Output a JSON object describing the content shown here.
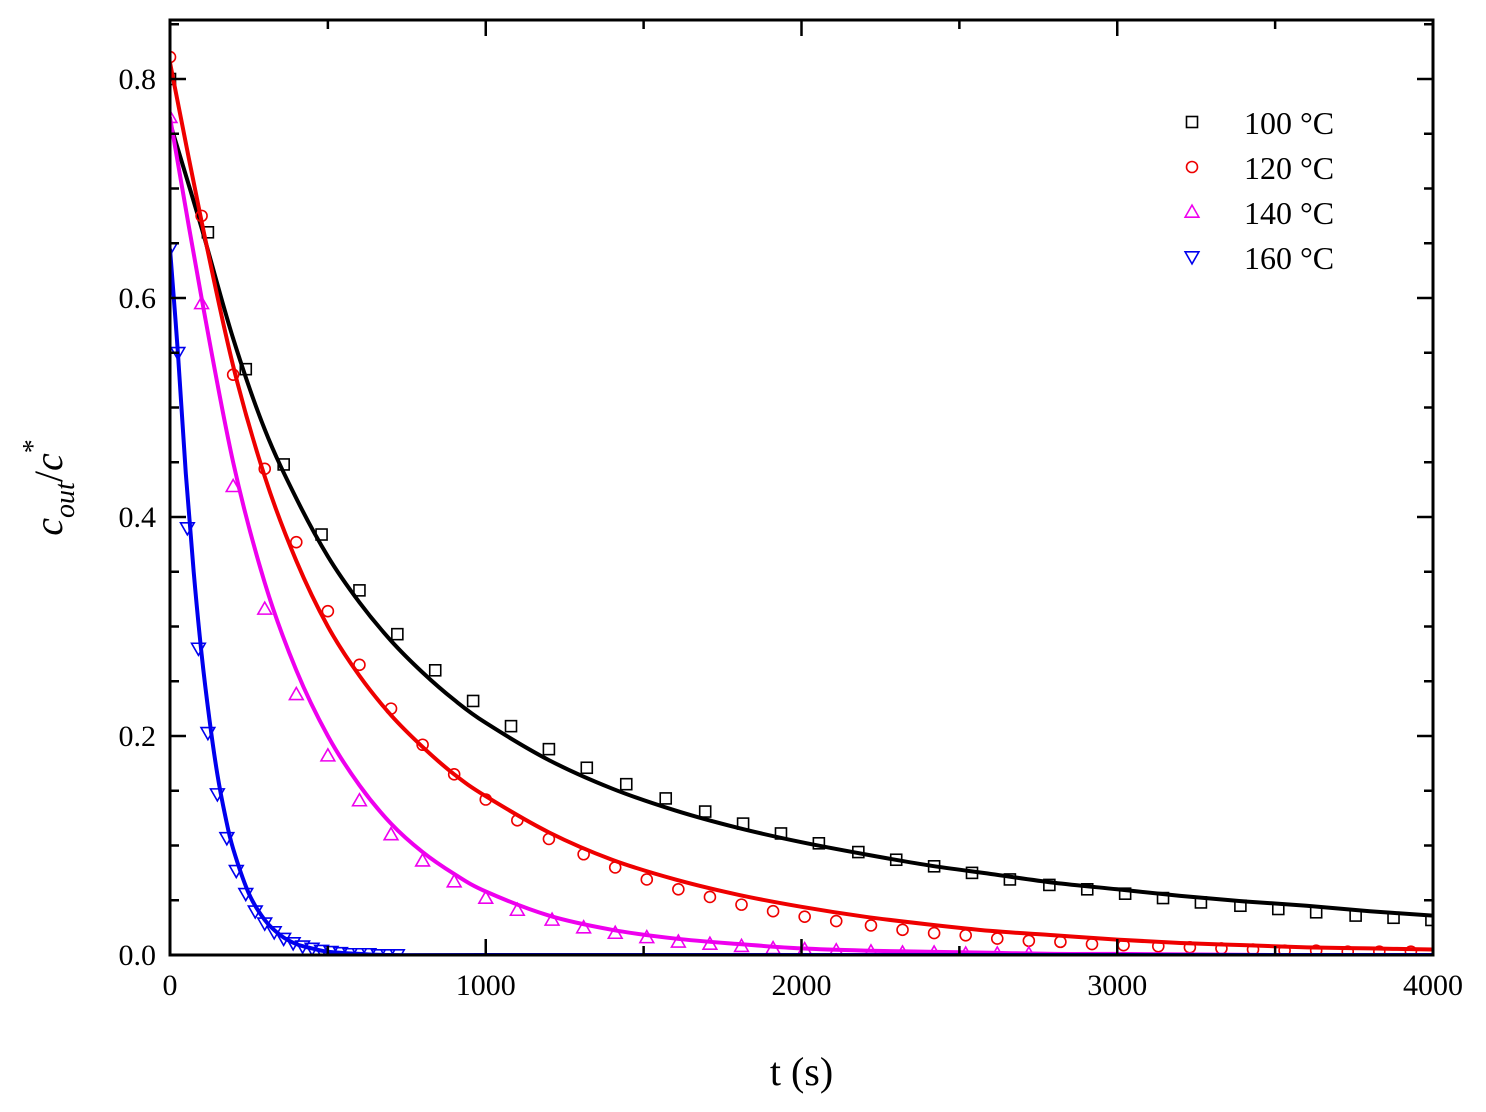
{
  "chart_data": {
    "type": "scatter",
    "title": "",
    "xlabel": "t (s)",
    "ylabel": {
      "base1": "c",
      "sub": "out",
      "slash": "/",
      "base2": "c",
      "sup": "*"
    },
    "xlim": [
      0,
      4000
    ],
    "ylim": [
      0,
      0.85
    ],
    "x_ticks": [
      0,
      1000,
      2000,
      3000,
      4000
    ],
    "x_tick_labels": [
      "0",
      "1000",
      "2000",
      "3000",
      "4000"
    ],
    "y_ticks": [
      0.0,
      0.2,
      0.4,
      0.6,
      0.8
    ],
    "y_tick_labels": [
      "0.0",
      "0.2",
      "0.4",
      "0.6",
      "0.8"
    ],
    "grid": false,
    "legend_position": "top-right",
    "series": [
      {
        "name": "100 °C",
        "color": "#000000",
        "marker": "square",
        "points": [
          [
            0,
            0.8
          ],
          [
            120,
            0.66
          ],
          [
            240,
            0.535
          ],
          [
            360,
            0.448
          ],
          [
            480,
            0.384
          ],
          [
            600,
            0.333
          ],
          [
            720,
            0.293
          ],
          [
            840,
            0.26
          ],
          [
            960,
            0.232
          ],
          [
            1080,
            0.209
          ],
          [
            1200,
            0.188
          ],
          [
            1320,
            0.171
          ],
          [
            1445,
            0.156
          ],
          [
            1570,
            0.143
          ],
          [
            1695,
            0.131
          ],
          [
            1815,
            0.12
          ],
          [
            1935,
            0.111
          ],
          [
            2055,
            0.102
          ],
          [
            2180,
            0.094
          ],
          [
            2300,
            0.087
          ],
          [
            2420,
            0.081
          ],
          [
            2540,
            0.075
          ],
          [
            2660,
            0.069
          ],
          [
            2785,
            0.064
          ],
          [
            2905,
            0.06
          ],
          [
            3025,
            0.056
          ],
          [
            3145,
            0.052
          ],
          [
            3265,
            0.048
          ],
          [
            3390,
            0.045
          ],
          [
            3510,
            0.042
          ],
          [
            3630,
            0.039
          ],
          [
            3755,
            0.036
          ],
          [
            3875,
            0.034
          ],
          [
            3995,
            0.032
          ]
        ],
        "fit": [
          [
            0,
            0.76
          ],
          [
            100,
            0.664
          ],
          [
            200,
            0.563
          ],
          [
            300,
            0.48
          ],
          [
            400,
            0.417
          ],
          [
            500,
            0.364
          ],
          [
            600,
            0.322
          ],
          [
            700,
            0.287
          ],
          [
            800,
            0.258
          ],
          [
            900,
            0.233
          ],
          [
            1000,
            0.212
          ],
          [
            1200,
            0.178
          ],
          [
            1400,
            0.152
          ],
          [
            1600,
            0.132
          ],
          [
            1800,
            0.116
          ],
          [
            2000,
            0.103
          ],
          [
            2200,
            0.092
          ],
          [
            2400,
            0.082
          ],
          [
            2600,
            0.074
          ],
          [
            2800,
            0.066
          ],
          [
            3000,
            0.06
          ],
          [
            3200,
            0.054
          ],
          [
            3400,
            0.049
          ],
          [
            3600,
            0.045
          ],
          [
            3800,
            0.04
          ],
          [
            4000,
            0.036
          ]
        ]
      },
      {
        "name": "120 °C",
        "color": "#ee0000",
        "marker": "circle",
        "points": [
          [
            0,
            0.82
          ],
          [
            100,
            0.675
          ],
          [
            200,
            0.53
          ],
          [
            300,
            0.444
          ],
          [
            400,
            0.377
          ],
          [
            500,
            0.314
          ],
          [
            600,
            0.265
          ],
          [
            700,
            0.225
          ],
          [
            800,
            0.192
          ],
          [
            900,
            0.165
          ],
          [
            1000,
            0.142
          ],
          [
            1100,
            0.123
          ],
          [
            1200,
            0.106
          ],
          [
            1310,
            0.092
          ],
          [
            1410,
            0.08
          ],
          [
            1510,
            0.069
          ],
          [
            1610,
            0.06
          ],
          [
            1710,
            0.053
          ],
          [
            1810,
            0.046
          ],
          [
            1910,
            0.04
          ],
          [
            2010,
            0.035
          ],
          [
            2110,
            0.031
          ],
          [
            2220,
            0.027
          ],
          [
            2320,
            0.023
          ],
          [
            2420,
            0.02
          ],
          [
            2520,
            0.018
          ],
          [
            2620,
            0.015
          ],
          [
            2720,
            0.013
          ],
          [
            2820,
            0.012
          ],
          [
            2920,
            0.01
          ],
          [
            3020,
            0.009
          ],
          [
            3130,
            0.008
          ],
          [
            3230,
            0.007
          ],
          [
            3330,
            0.006
          ],
          [
            3430,
            0.005
          ],
          [
            3530,
            0.004
          ],
          [
            3630,
            0.004
          ],
          [
            3730,
            0.003
          ],
          [
            3830,
            0.003
          ],
          [
            3930,
            0.003
          ]
        ],
        "fit": [
          [
            0,
            0.815
          ],
          [
            100,
            0.67
          ],
          [
            200,
            0.538
          ],
          [
            300,
            0.437
          ],
          [
            400,
            0.36
          ],
          [
            500,
            0.3
          ],
          [
            600,
            0.255
          ],
          [
            700,
            0.219
          ],
          [
            800,
            0.19
          ],
          [
            900,
            0.165
          ],
          [
            1000,
            0.145
          ],
          [
            1200,
            0.112
          ],
          [
            1400,
            0.087
          ],
          [
            1600,
            0.069
          ],
          [
            1800,
            0.055
          ],
          [
            2000,
            0.044
          ],
          [
            2200,
            0.035
          ],
          [
            2400,
            0.028
          ],
          [
            2600,
            0.022
          ],
          [
            2800,
            0.018
          ],
          [
            3000,
            0.014
          ],
          [
            3200,
            0.011
          ],
          [
            3400,
            0.009
          ],
          [
            3600,
            0.007
          ],
          [
            3800,
            0.006
          ],
          [
            4000,
            0.005
          ]
        ]
      },
      {
        "name": "140 °C",
        "color": "#ee00ee",
        "marker": "triangle-up",
        "points": [
          [
            0,
            0.765
          ],
          [
            100,
            0.595
          ],
          [
            200,
            0.428
          ],
          [
            300,
            0.316
          ],
          [
            400,
            0.238
          ],
          [
            500,
            0.182
          ],
          [
            600,
            0.141
          ],
          [
            700,
            0.11
          ],
          [
            800,
            0.086
          ],
          [
            900,
            0.067
          ],
          [
            1000,
            0.052
          ],
          [
            1100,
            0.041
          ],
          [
            1210,
            0.032
          ],
          [
            1310,
            0.025
          ],
          [
            1410,
            0.02
          ],
          [
            1510,
            0.016
          ],
          [
            1610,
            0.012
          ],
          [
            1710,
            0.01
          ],
          [
            1810,
            0.008
          ],
          [
            1910,
            0.006
          ],
          [
            2010,
            0.005
          ],
          [
            2110,
            0.004
          ],
          [
            2220,
            0.003
          ],
          [
            2320,
            0.002
          ],
          [
            2420,
            0.002
          ],
          [
            2520,
            0.001
          ],
          [
            2620,
            0.001
          ],
          [
            2720,
            0.001
          ]
        ],
        "fit": [
          [
            0,
            0.765
          ],
          [
            100,
            0.6
          ],
          [
            200,
            0.45
          ],
          [
            300,
            0.34
          ],
          [
            400,
            0.26
          ],
          [
            500,
            0.2
          ],
          [
            600,
            0.155
          ],
          [
            700,
            0.12
          ],
          [
            800,
            0.094
          ],
          [
            900,
            0.074
          ],
          [
            1000,
            0.058
          ],
          [
            1200,
            0.036
          ],
          [
            1400,
            0.023
          ],
          [
            1600,
            0.015
          ],
          [
            1800,
            0.01
          ],
          [
            2000,
            0.006
          ],
          [
            2200,
            0.004
          ],
          [
            2400,
            0.003
          ],
          [
            2600,
            0.002
          ],
          [
            2800,
            0.001
          ],
          [
            3000,
            0.001
          ],
          [
            3500,
            0.0
          ],
          [
            4000,
            0.0
          ]
        ]
      },
      {
        "name": "160 °C",
        "color": "#0000ee",
        "marker": "triangle-down",
        "points": [
          [
            0,
            0.645
          ],
          [
            25,
            0.55
          ],
          [
            55,
            0.39
          ],
          [
            90,
            0.28
          ],
          [
            120,
            0.203
          ],
          [
            150,
            0.147
          ],
          [
            180,
            0.107
          ],
          [
            210,
            0.077
          ],
          [
            240,
            0.056
          ],
          [
            270,
            0.04
          ],
          [
            300,
            0.029
          ],
          [
            330,
            0.021
          ],
          [
            360,
            0.015
          ],
          [
            390,
            0.011
          ],
          [
            420,
            0.008
          ],
          [
            450,
            0.006
          ],
          [
            480,
            0.004
          ],
          [
            510,
            0.003
          ],
          [
            540,
            0.002
          ],
          [
            570,
            0.001
          ],
          [
            600,
            0.001
          ],
          [
            630,
            0.001
          ],
          [
            660,
            0.0
          ],
          [
            690,
            0.0
          ],
          [
            720,
            0.0
          ]
        ],
        "fit": [
          [
            0,
            0.645
          ],
          [
            25,
            0.55
          ],
          [
            50,
            0.44
          ],
          [
            75,
            0.35
          ],
          [
            100,
            0.275
          ],
          [
            125,
            0.215
          ],
          [
            150,
            0.165
          ],
          [
            175,
            0.127
          ],
          [
            200,
            0.097
          ],
          [
            250,
            0.056
          ],
          [
            300,
            0.032
          ],
          [
            350,
            0.018
          ],
          [
            400,
            0.01
          ],
          [
            450,
            0.006
          ],
          [
            500,
            0.003
          ],
          [
            600,
            0.001
          ],
          [
            700,
            0.0
          ],
          [
            1000,
            0.0
          ],
          [
            2000,
            0.0
          ],
          [
            3000,
            0.0
          ],
          [
            4000,
            0.0
          ]
        ]
      }
    ]
  }
}
